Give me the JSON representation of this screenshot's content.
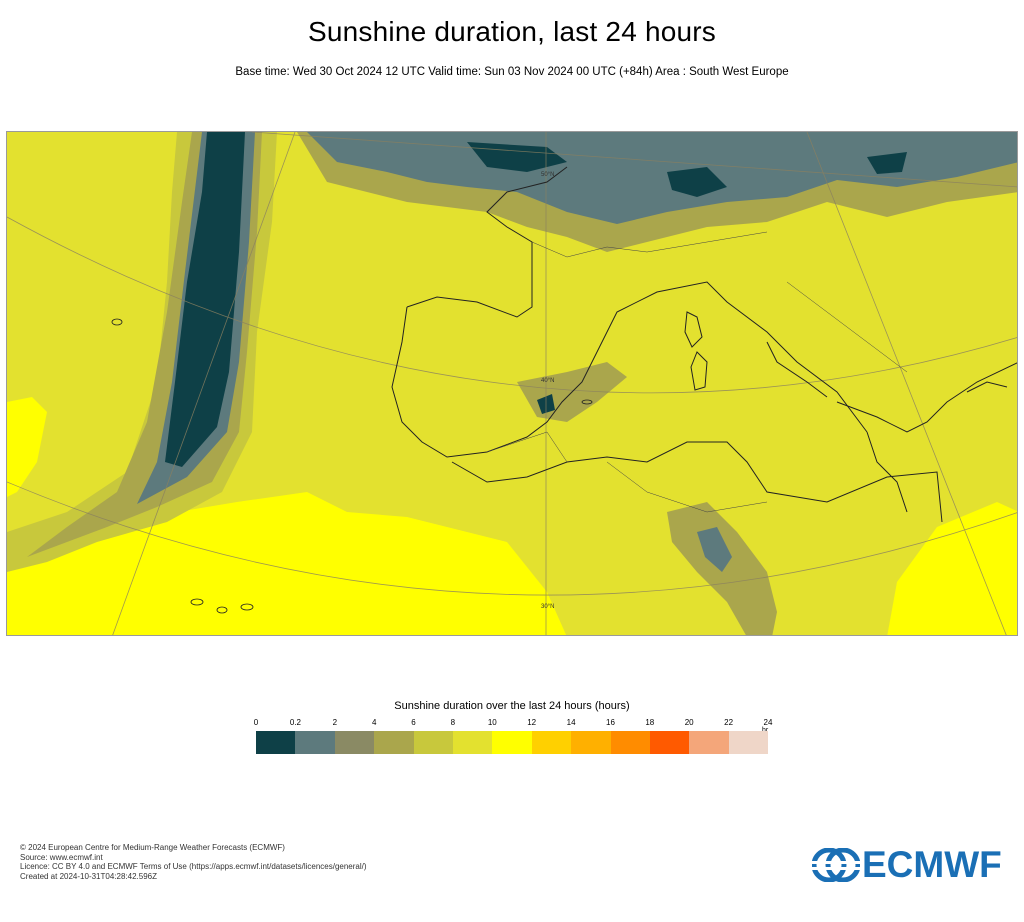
{
  "header": {
    "title": "Sunshine duration, last 24 hours",
    "subtitle": "Base time: Wed 30 Oct 2024 12 UTC Valid time: Sun 03 Nov 2024 00 UTC (+84h) Area : South West Europe"
  },
  "map": {
    "gridline_labels": [
      "40°N",
      "30°N",
      "50°N"
    ]
  },
  "legend": {
    "title": "Sunshine duration over the last 24 hours (hours)",
    "ticks": [
      "0",
      "0.2",
      "2",
      "4",
      "6",
      "8",
      "10",
      "12",
      "14",
      "16",
      "18",
      "20",
      "22",
      "24"
    ],
    "unit": "hr",
    "colors": [
      "#0e4047",
      "#5d7a7d",
      "#8a8a64",
      "#aaa64c",
      "#c8c83c",
      "#e3e12f",
      "#ffff00",
      "#ffd000",
      "#ffb000",
      "#ff8c00",
      "#ff5a00",
      "#f4a67a",
      "#efd6c8"
    ]
  },
  "footer": {
    "lines": [
      "© 2024 European Centre for Medium-Range Weather Forecasts (ECMWF)",
      "Source: www.ecmwf.int",
      "Licence: CC BY 4.0 and ECMWF Terms of Use (https://apps.ecmwf.int/datasets/licences/general/)",
      "Created at 2024-10-31T04:28:42.596Z"
    ]
  },
  "logo": {
    "text": "ECMWF",
    "color": "#1a6fb5"
  }
}
